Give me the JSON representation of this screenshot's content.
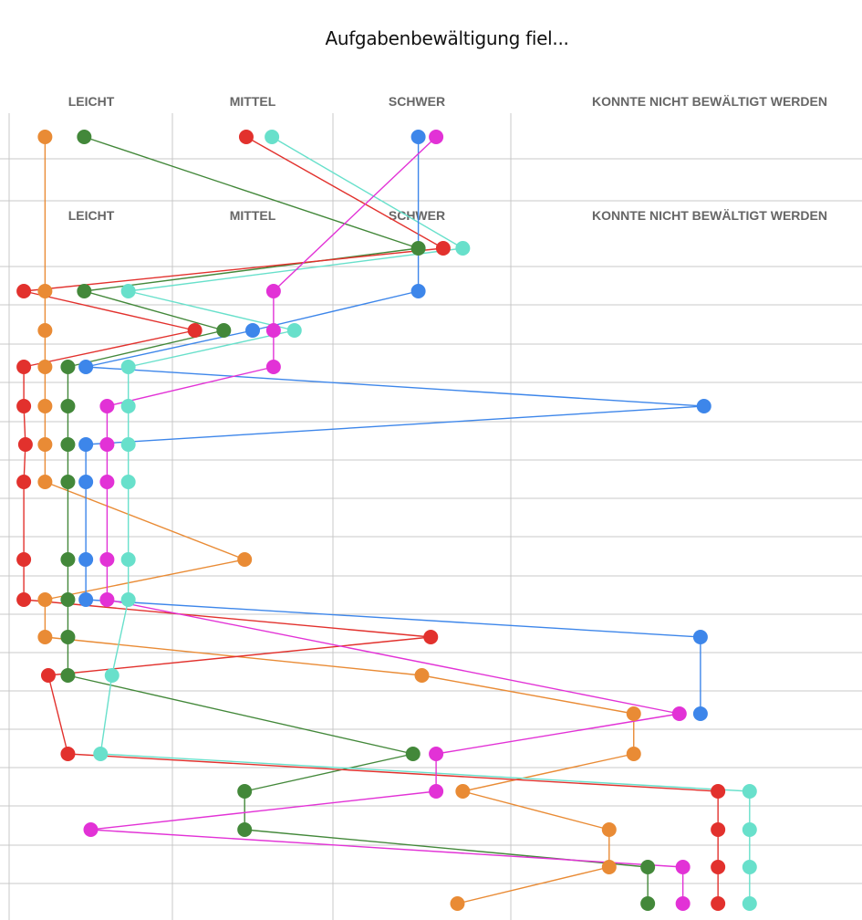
{
  "title": "Aufgabenbewältigung fiel...",
  "chart_data": {
    "type": "scatter",
    "subtype": "categorical-slope-dot-plot",
    "title": "Aufgabenbewältigung fiel...",
    "categories": [
      "LEICHT",
      "MITTEL",
      "SCHWER",
      "KONNTE NICHT BEWÄLTIGT WERDEN"
    ],
    "header_rows": [
      0,
      2
    ],
    "grid": true,
    "legend": "none",
    "rows": 21,
    "series": [
      {
        "name": "orange",
        "color": "#e98b35",
        "points": [
          {
            "row": 0,
            "cat": 0,
            "pos": 0.22
          },
          {
            "row": 4,
            "cat": 0,
            "pos": 0.22
          },
          {
            "row": 5,
            "cat": 0,
            "pos": 0.22
          },
          {
            "row": 6,
            "cat": 0,
            "pos": 0.22
          },
          {
            "row": 7,
            "cat": 0,
            "pos": 0.22
          },
          {
            "row": 8,
            "cat": 0,
            "pos": 0.22
          },
          {
            "row": 9,
            "cat": 0,
            "pos": 0.22
          },
          {
            "row": 11,
            "cat": 1,
            "pos": 0.45
          },
          {
            "row": 12,
            "cat": 0,
            "pos": 0.22
          },
          {
            "row": 13,
            "cat": 0,
            "pos": 0.22
          },
          {
            "row": 14,
            "cat": 2,
            "pos": 0.5
          },
          {
            "row": 15,
            "cat": 3,
            "pos": 0.35
          },
          {
            "row": 16,
            "cat": 3,
            "pos": 0.35
          },
          {
            "row": 17,
            "cat": 2,
            "pos": 0.73
          },
          {
            "row": 18,
            "cat": 3,
            "pos": 0.28
          },
          {
            "row": 19,
            "cat": 3,
            "pos": 0.28
          },
          {
            "row": 20,
            "cat": 2,
            "pos": 0.7
          }
        ]
      },
      {
        "name": "green",
        "color": "#43883a",
        "points": [
          {
            "row": 0,
            "cat": 0,
            "pos": 0.46
          },
          {
            "row": 3,
            "cat": 2,
            "pos": 0.48
          },
          {
            "row": 4,
            "cat": 0,
            "pos": 0.46
          },
          {
            "row": 5,
            "cat": 1,
            "pos": 0.32
          },
          {
            "row": 6,
            "cat": 0,
            "pos": 0.36
          },
          {
            "row": 7,
            "cat": 0,
            "pos": 0.36
          },
          {
            "row": 8,
            "cat": 0,
            "pos": 0.36
          },
          {
            "row": 9,
            "cat": 0,
            "pos": 0.36
          },
          {
            "row": 11,
            "cat": 0,
            "pos": 0.36
          },
          {
            "row": 12,
            "cat": 0,
            "pos": 0.36
          },
          {
            "row": 13,
            "cat": 0,
            "pos": 0.36
          },
          {
            "row": 14,
            "cat": 0,
            "pos": 0.36
          },
          {
            "row": 16,
            "cat": 2,
            "pos": 0.45
          },
          {
            "row": 17,
            "cat": 1,
            "pos": 0.45
          },
          {
            "row": 18,
            "cat": 1,
            "pos": 0.45
          },
          {
            "row": 19,
            "cat": 3,
            "pos": 0.39
          },
          {
            "row": 20,
            "cat": 3,
            "pos": 0.39
          }
        ]
      },
      {
        "name": "red",
        "color": "#e2312d",
        "points": [
          {
            "row": 0,
            "cat": 1,
            "pos": 0.46
          },
          {
            "row": 3,
            "cat": 2,
            "pos": 0.62
          },
          {
            "row": 4,
            "cat": 0,
            "pos": 0.09
          },
          {
            "row": 5,
            "cat": 1,
            "pos": 0.14
          },
          {
            "row": 6,
            "cat": 0,
            "pos": 0.09
          },
          {
            "row": 7,
            "cat": 0,
            "pos": 0.09
          },
          {
            "row": 8,
            "cat": 0,
            "pos": 0.1
          },
          {
            "row": 9,
            "cat": 0,
            "pos": 0.09
          },
          {
            "row": 11,
            "cat": 0,
            "pos": 0.09
          },
          {
            "row": 12,
            "cat": 0,
            "pos": 0.09
          },
          {
            "row": 13,
            "cat": 2,
            "pos": 0.55
          },
          {
            "row": 14,
            "cat": 0,
            "pos": 0.24
          },
          {
            "row": 16,
            "cat": 0,
            "pos": 0.36
          },
          {
            "row": 17,
            "cat": 3,
            "pos": 0.59
          },
          {
            "row": 18,
            "cat": 3,
            "pos": 0.59
          },
          {
            "row": 19,
            "cat": 3,
            "pos": 0.59
          },
          {
            "row": 20,
            "cat": 3,
            "pos": 0.59
          }
        ]
      },
      {
        "name": "teal",
        "color": "#68e0cb",
        "points": [
          {
            "row": 0,
            "cat": 1,
            "pos": 0.62
          },
          {
            "row": 3,
            "cat": 2,
            "pos": 0.73
          },
          {
            "row": 4,
            "cat": 0,
            "pos": 0.73
          },
          {
            "row": 5,
            "cat": 1,
            "pos": 0.76
          },
          {
            "row": 6,
            "cat": 0,
            "pos": 0.73
          },
          {
            "row": 7,
            "cat": 0,
            "pos": 0.73
          },
          {
            "row": 8,
            "cat": 0,
            "pos": 0.73
          },
          {
            "row": 9,
            "cat": 0,
            "pos": 0.73
          },
          {
            "row": 11,
            "cat": 0,
            "pos": 0.73
          },
          {
            "row": 12,
            "cat": 0,
            "pos": 0.73
          },
          {
            "row": 14,
            "cat": 0,
            "pos": 0.63
          },
          {
            "row": 16,
            "cat": 0,
            "pos": 0.56
          },
          {
            "row": 17,
            "cat": 3,
            "pos": 0.68
          },
          {
            "row": 18,
            "cat": 3,
            "pos": 0.68
          },
          {
            "row": 19,
            "cat": 3,
            "pos": 0.68
          },
          {
            "row": 20,
            "cat": 3,
            "pos": 0.68
          }
        ]
      },
      {
        "name": "blue",
        "color": "#3d86ea",
        "points": [
          {
            "row": 0,
            "cat": 2,
            "pos": 0.48
          },
          {
            "row": 4,
            "cat": 2,
            "pos": 0.48
          },
          {
            "row": 5,
            "cat": 1,
            "pos": 0.5
          },
          {
            "row": 6,
            "cat": 0,
            "pos": 0.47
          },
          {
            "row": 7,
            "cat": 3,
            "pos": 0.55
          },
          {
            "row": 8,
            "cat": 0,
            "pos": 0.47
          },
          {
            "row": 9,
            "cat": 0,
            "pos": 0.47
          },
          {
            "row": 11,
            "cat": 0,
            "pos": 0.47
          },
          {
            "row": 12,
            "cat": 0,
            "pos": 0.47
          },
          {
            "row": 13,
            "cat": 3,
            "pos": 0.54
          },
          {
            "row": 15,
            "cat": 3,
            "pos": 0.54
          }
        ]
      },
      {
        "name": "magenta",
        "color": "#e232d6",
        "points": [
          {
            "row": 0,
            "cat": 2,
            "pos": 0.58
          },
          {
            "row": 4,
            "cat": 1,
            "pos": 0.63
          },
          {
            "row": 5,
            "cat": 1,
            "pos": 0.63
          },
          {
            "row": 6,
            "cat": 1,
            "pos": 0.63
          },
          {
            "row": 7,
            "cat": 0,
            "pos": 0.6
          },
          {
            "row": 8,
            "cat": 0,
            "pos": 0.6
          },
          {
            "row": 9,
            "cat": 0,
            "pos": 0.6
          },
          {
            "row": 11,
            "cat": 0,
            "pos": 0.6
          },
          {
            "row": 12,
            "cat": 0,
            "pos": 0.6
          },
          {
            "row": 15,
            "cat": 3,
            "pos": 0.48
          },
          {
            "row": 16,
            "cat": 2,
            "pos": 0.58
          },
          {
            "row": 17,
            "cat": 2,
            "pos": 0.58
          },
          {
            "row": 18,
            "cat": 0,
            "pos": 0.5
          },
          {
            "row": 19,
            "cat": 3,
            "pos": 0.49
          },
          {
            "row": 20,
            "cat": 3,
            "pos": 0.49
          }
        ]
      }
    ]
  }
}
